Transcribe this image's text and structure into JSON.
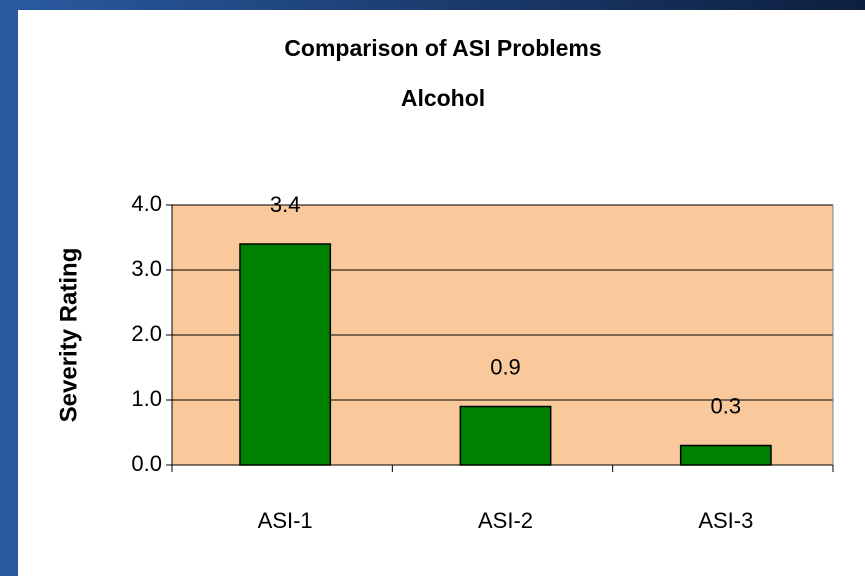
{
  "chart_data": {
    "type": "bar",
    "title": "Comparison of ASI Problems",
    "subtitle": "Alcohol",
    "y_label": "Severity Rating",
    "categories": [
      "ASI-1",
      "ASI-2",
      "ASI-3"
    ],
    "values": [
      3.4,
      0.9,
      0.3
    ],
    "color": "#008000",
    "ylim": [
      0,
      4
    ],
    "yticks": [
      {
        "value": 0,
        "label": "0.0"
      },
      {
        "value": 1,
        "label": "1.0"
      },
      {
        "value": 2,
        "label": "2.0"
      },
      {
        "value": 3,
        "label": "3.0"
      },
      {
        "value": 4,
        "label": "4.0"
      }
    ],
    "grid": true
  }
}
